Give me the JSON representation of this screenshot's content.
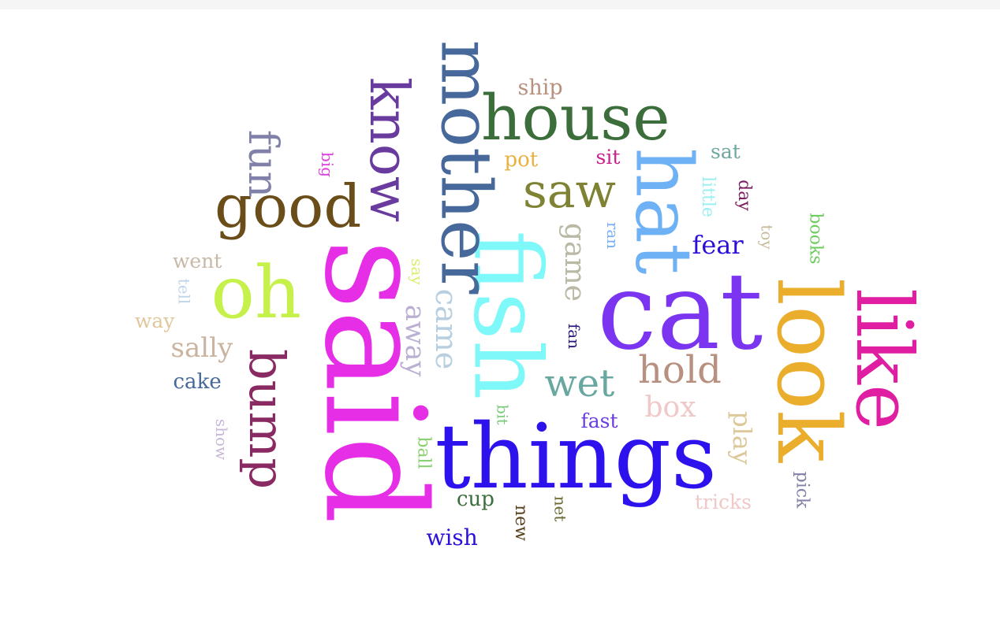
{
  "cloud": {
    "words": [
      {
        "text": "said",
        "color": "#e62ee6",
        "rotated": true
      },
      {
        "text": "cat",
        "color": "#7b35f0",
        "rotated": false
      },
      {
        "text": "things",
        "color": "#2d12ee",
        "rotated": false
      },
      {
        "text": "look",
        "color": "#eaae2c",
        "rotated": true
      },
      {
        "text": "fish",
        "color": "#7ef8f8",
        "rotated": true
      },
      {
        "text": "mother",
        "color": "#46689a",
        "rotated": true
      },
      {
        "text": "like",
        "color": "#e01ea1",
        "rotated": true
      },
      {
        "text": "house",
        "color": "#3c6e3c",
        "rotated": false
      },
      {
        "text": "hat",
        "color": "#6eb2f5",
        "rotated": true
      },
      {
        "text": "oh",
        "color": "#c6f04a",
        "rotated": false
      },
      {
        "text": "good",
        "color": "#6a4d18",
        "rotated": false
      },
      {
        "text": "know",
        "color": "#6a3b9e",
        "rotated": true
      },
      {
        "text": "bump",
        "color": "#8a2a63",
        "rotated": true
      },
      {
        "text": "saw",
        "color": "#7e8232",
        "rotated": false
      },
      {
        "text": "fun",
        "color": "#8080a8",
        "rotated": true
      },
      {
        "text": "game",
        "color": "#b9b9a5",
        "rotated": true
      },
      {
        "text": "came",
        "color": "#b7cfe0",
        "rotated": true
      },
      {
        "text": "away",
        "color": "#bcb0d2",
        "rotated": true
      },
      {
        "text": "hold",
        "color": "#b89080",
        "rotated": false
      },
      {
        "text": "wet",
        "color": "#68a8a0",
        "rotated": false
      },
      {
        "text": "sally",
        "color": "#c9b4a0",
        "rotated": false
      },
      {
        "text": "box",
        "color": "#f0c8c8",
        "rotated": false
      },
      {
        "text": "play",
        "color": "#dcc899",
        "rotated": true
      },
      {
        "text": "fear",
        "color": "#2a10d8",
        "rotated": false
      },
      {
        "text": "ship",
        "color": "#b89080",
        "rotated": false
      },
      {
        "text": "pot",
        "color": "#eab040",
        "rotated": false
      },
      {
        "text": "sit",
        "color": "#cc2090",
        "rotated": false
      },
      {
        "text": "sat",
        "color": "#70a8a0",
        "rotated": false
      },
      {
        "text": "little",
        "color": "#9af0f0",
        "rotated": true
      },
      {
        "text": "day",
        "color": "#7a2060",
        "rotated": true
      },
      {
        "text": "toy",
        "color": "#c8bc9c",
        "rotated": true
      },
      {
        "text": "books",
        "color": "#6ccc5c",
        "rotated": true
      },
      {
        "text": "ran",
        "color": "#7ab0f0",
        "rotated": true
      },
      {
        "text": "big",
        "color": "#dd40dd",
        "rotated": true
      },
      {
        "text": "went",
        "color": "#c8b8a8",
        "rotated": false
      },
      {
        "text": "tell",
        "color": "#c0d4e8",
        "rotated": true
      },
      {
        "text": "way",
        "color": "#e0c89c",
        "rotated": false
      },
      {
        "text": "cake",
        "color": "#46689a",
        "rotated": false
      },
      {
        "text": "show",
        "color": "#c8b8d8",
        "rotated": true
      },
      {
        "text": "say",
        "color": "#d6f070",
        "rotated": true
      },
      {
        "text": "fan",
        "color": "#2a1a80",
        "rotated": true
      },
      {
        "text": "fast",
        "color": "#6a3ce0",
        "rotated": false
      },
      {
        "text": "bit",
        "color": "#78c878",
        "rotated": true
      },
      {
        "text": "ball",
        "color": "#88d070",
        "rotated": true
      },
      {
        "text": "cup",
        "color": "#3c6e3c",
        "rotated": false
      },
      {
        "text": "new",
        "color": "#5a4220",
        "rotated": true
      },
      {
        "text": "net",
        "color": "#6a6a30",
        "rotated": true
      },
      {
        "text": "wish",
        "color": "#2a10d8",
        "rotated": false
      },
      {
        "text": "tricks",
        "color": "#f0c8c8",
        "rotated": false
      },
      {
        "text": "pick",
        "color": "#8080a8",
        "rotated": true
      }
    ]
  }
}
